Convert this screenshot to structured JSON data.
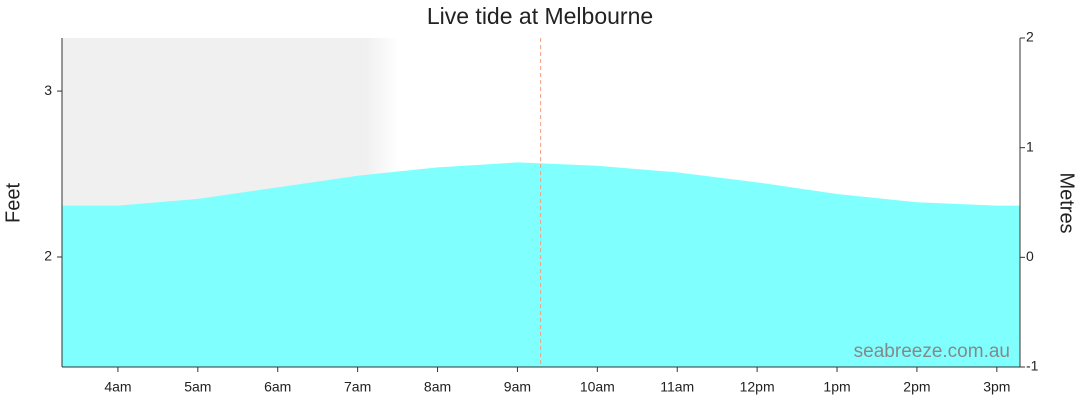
{
  "chart_data": {
    "type": "area",
    "title": "Live tide at Melbourne",
    "ylabel": "Feet",
    "y2label": "Metres",
    "watermark": "seabreeze.com.au",
    "x": [
      3.3,
      4,
      5,
      6,
      7,
      8,
      9,
      10,
      11,
      12,
      13,
      14,
      15,
      15.29
    ],
    "values": [
      2.31,
      2.31,
      2.35,
      2.42,
      2.49,
      2.54,
      2.57,
      2.55,
      2.51,
      2.45,
      2.38,
      2.33,
      2.31,
      2.31
    ],
    "color": "#80ffff",
    "xlim": [
      3.3,
      15.29
    ],
    "xticks": [
      {
        "value": 4,
        "label": "4am"
      },
      {
        "value": 5,
        "label": "5am"
      },
      {
        "value": 6,
        "label": "6am"
      },
      {
        "value": 7,
        "label": "7am"
      },
      {
        "value": 8,
        "label": "8am"
      },
      {
        "value": 9,
        "label": "9am"
      },
      {
        "value": 10,
        "label": "10am"
      },
      {
        "value": 11,
        "label": "11am"
      },
      {
        "value": 12,
        "label": "12pm"
      },
      {
        "value": 13,
        "label": "1pm"
      },
      {
        "value": 14,
        "label": "2pm"
      },
      {
        "value": 15,
        "label": "3pm"
      }
    ],
    "ylim": [
      1.337,
      3.32
    ],
    "yticks": [
      2,
      3
    ],
    "y2lim": [
      -1,
      2
    ],
    "y2ticks": [
      -1,
      0,
      1,
      2
    ],
    "now": 9.29,
    "night_end": 7.4
  }
}
